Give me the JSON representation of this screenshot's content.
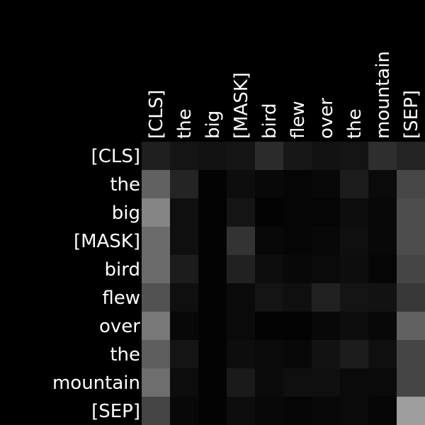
{
  "chart_data": {
    "type": "heatmap",
    "x_tokens": [
      "[CLS]",
      "the",
      "big",
      "[MASK]",
      "bird",
      "flew",
      "over",
      "the",
      "mountain",
      "[SEP]"
    ],
    "y_tokens": [
      "[CLS]",
      "the",
      "big",
      "[MASK]",
      "bird",
      "flew",
      "over",
      "the",
      "mountain",
      "[SEP]"
    ],
    "value_range": [
      0,
      1
    ],
    "colormap": "grayscale, black = 0, white = 1",
    "x_label_position": "top, rotated vertical",
    "y_label_position": "left, right-aligned",
    "values": [
      [
        0.12,
        0.08,
        0.07,
        0.08,
        0.17,
        0.09,
        0.07,
        0.08,
        0.18,
        0.14
      ],
      [
        0.38,
        0.14,
        0.01,
        0.05,
        0.03,
        0.02,
        0.03,
        0.11,
        0.04,
        0.28
      ],
      [
        0.52,
        0.06,
        0.01,
        0.08,
        0.01,
        0.02,
        0.02,
        0.05,
        0.03,
        0.3
      ],
      [
        0.42,
        0.06,
        0.01,
        0.2,
        0.03,
        0.02,
        0.03,
        0.06,
        0.03,
        0.3
      ],
      [
        0.42,
        0.11,
        0.01,
        0.13,
        0.05,
        0.03,
        0.04,
        0.05,
        0.02,
        0.27
      ],
      [
        0.32,
        0.06,
        0.01,
        0.04,
        0.08,
        0.06,
        0.13,
        0.08,
        0.07,
        0.22
      ],
      [
        0.47,
        0.03,
        0.01,
        0.04,
        0.01,
        0.01,
        0.03,
        0.05,
        0.03,
        0.38
      ],
      [
        0.37,
        0.08,
        0.01,
        0.05,
        0.04,
        0.03,
        0.07,
        0.11,
        0.06,
        0.27
      ],
      [
        0.43,
        0.05,
        0.01,
        0.1,
        0.04,
        0.06,
        0.06,
        0.04,
        0.04,
        0.27
      ],
      [
        0.27,
        0.03,
        0.01,
        0.05,
        0.03,
        0.02,
        0.03,
        0.04,
        0.02,
        0.62
      ]
    ]
  }
}
